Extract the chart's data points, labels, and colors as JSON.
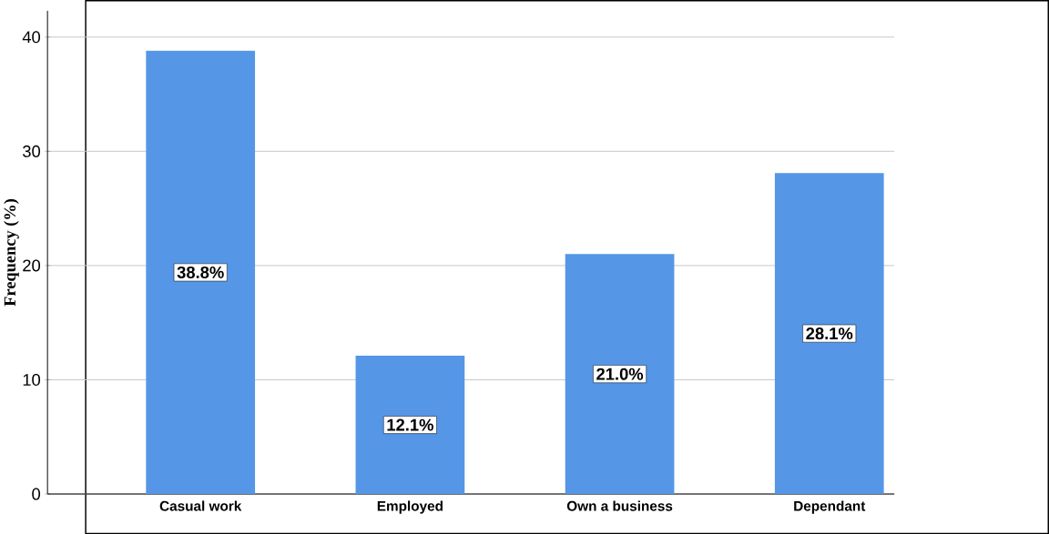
{
  "chart_data": {
    "type": "bar",
    "ylabel": "Frequency (%)",
    "categories": [
      "Casual work",
      "Employed",
      "Own a business",
      "Dependant"
    ],
    "values": [
      38.8,
      12.1,
      21.0,
      28.1
    ],
    "value_labels": [
      "38.8%",
      "12.1%",
      "21.0%",
      "28.1%"
    ],
    "color": "#5596e6",
    "ylim": [
      0,
      42.3
    ],
    "yticks": [
      0,
      10,
      20,
      30,
      40
    ],
    "grid": "y"
  }
}
